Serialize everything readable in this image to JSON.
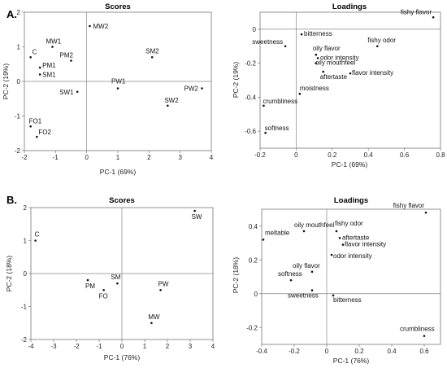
{
  "panel_labels": [
    "A.",
    "B."
  ],
  "chart_data": [
    {
      "type": "scatter",
      "title": "Scores",
      "xlabel": "PC-1 (69%)",
      "ylabel": "PC-2 (19%)",
      "xlim": [
        -2,
        4
      ],
      "ylim": [
        -2,
        2
      ],
      "xticks": [
        -2,
        -1,
        0,
        1,
        2,
        3,
        4
      ],
      "yticks": [
        -2,
        -1,
        0,
        1,
        2
      ],
      "points": [
        {
          "label": "C",
          "x": -1.8,
          "y": 0.7
        },
        {
          "label": "MW1",
          "x": -1.1,
          "y": 1.0
        },
        {
          "label": "MW2",
          "x": 0.1,
          "y": 1.6
        },
        {
          "label": "PM2",
          "x": -0.5,
          "y": 0.6
        },
        {
          "label": "PM1",
          "x": -1.5,
          "y": 0.4
        },
        {
          "label": "SM1",
          "x": -1.5,
          "y": 0.2
        },
        {
          "label": "SM2",
          "x": 2.1,
          "y": 0.7
        },
        {
          "label": "PW1",
          "x": 1.0,
          "y": -0.2
        },
        {
          "label": "SW1",
          "x": -0.3,
          "y": -0.3
        },
        {
          "label": "PW2",
          "x": 3.7,
          "y": -0.2
        },
        {
          "label": "SW2",
          "x": 2.6,
          "y": -0.7
        },
        {
          "label": "FO1",
          "x": -1.8,
          "y": -1.3
        },
        {
          "label": "FO2",
          "x": -1.6,
          "y": -1.6
        }
      ]
    },
    {
      "type": "scatter",
      "title": "Loadings",
      "xlabel": "PC-1 (69%)",
      "ylabel": "PC-2 (19%)",
      "xlim": [
        -0.2,
        0.8
      ],
      "ylim": [
        -0.7,
        0.1
      ],
      "xticks": [
        -0.2,
        0,
        0.2,
        0.4,
        0.6,
        0.8
      ],
      "yticks": [
        -0.6,
        -0.4,
        -0.2,
        0
      ],
      "points": [
        {
          "label": "fishy flavor",
          "x": 0.76,
          "y": 0.07
        },
        {
          "label": "bitterness",
          "x": 0.03,
          "y": -0.03
        },
        {
          "label": "sweetness",
          "x": -0.06,
          "y": -0.1
        },
        {
          "label": "fishy odor",
          "x": 0.45,
          "y": -0.1
        },
        {
          "label": "oily flavor",
          "x": 0.11,
          "y": -0.15
        },
        {
          "label": "odor intensity",
          "x": 0.12,
          "y": -0.17
        },
        {
          "label": "oily mouthfeel",
          "x": 0.11,
          "y": -0.2
        },
        {
          "label": "flavor intensity",
          "x": 0.3,
          "y": -0.26
        },
        {
          "label": "aftertaste",
          "x": 0.15,
          "y": -0.25
        },
        {
          "label": "moistness",
          "x": 0.02,
          "y": -0.38
        },
        {
          "label": "crumbliness",
          "x": -0.18,
          "y": -0.45
        },
        {
          "label": "softness",
          "x": -0.17,
          "y": -0.61
        }
      ]
    },
    {
      "type": "scatter",
      "title": "Scores",
      "xlabel": "PC-1 (76%)",
      "ylabel": "PC-2 (18%)",
      "xlim": [
        -4,
        4
      ],
      "ylim": [
        -2,
        2
      ],
      "xticks": [
        -4,
        -3,
        -2,
        -1,
        0,
        1,
        2,
        3,
        4
      ],
      "yticks": [
        -2,
        -1,
        0,
        1,
        2
      ],
      "points": [
        {
          "label": "SW",
          "x": 3.2,
          "y": 1.9
        },
        {
          "label": "C",
          "x": -3.8,
          "y": 1.0
        },
        {
          "label": "PM",
          "x": -1.5,
          "y": -0.2
        },
        {
          "label": "SM",
          "x": -0.2,
          "y": -0.3
        },
        {
          "label": "FO",
          "x": -0.8,
          "y": -0.5
        },
        {
          "label": "PW",
          "x": 1.7,
          "y": -0.5
        },
        {
          "label": "MW",
          "x": 1.3,
          "y": -1.5
        }
      ]
    },
    {
      "type": "scatter",
      "title": "Loadings",
      "xlabel": "PC-1 (76%)",
      "ylabel": "PC-2 (18%)",
      "xlim": [
        -0.4,
        0.7
      ],
      "ylim": [
        -0.3,
        0.5
      ],
      "xticks": [
        -0.4,
        -0.2,
        0,
        0.2,
        0.4,
        0.6
      ],
      "yticks": [
        -0.2,
        0,
        0.2,
        0.4
      ],
      "points": [
        {
          "label": "fishy flavor",
          "x": 0.61,
          "y": 0.48
        },
        {
          "label": "oily mouthfeel",
          "x": -0.14,
          "y": 0.37
        },
        {
          "label": "meltable",
          "x": -0.39,
          "y": 0.32
        },
        {
          "label": "fishy odor",
          "x": 0.06,
          "y": 0.37
        },
        {
          "label": "aftertaste",
          "x": 0.08,
          "y": 0.33
        },
        {
          "label": "flavor intensity",
          "x": 0.1,
          "y": 0.29
        },
        {
          "label": "odor intensity",
          "x": 0.03,
          "y": 0.23
        },
        {
          "label": "oily flavor",
          "x": -0.09,
          "y": 0.13
        },
        {
          "label": "softness",
          "x": -0.22,
          "y": 0.08
        },
        {
          "label": "sweetness",
          "x": -0.09,
          "y": 0.02
        },
        {
          "label": "bitterness",
          "x": 0.04,
          "y": -0.01
        },
        {
          "label": "crumbliness",
          "x": 0.6,
          "y": -0.25
        }
      ]
    }
  ]
}
